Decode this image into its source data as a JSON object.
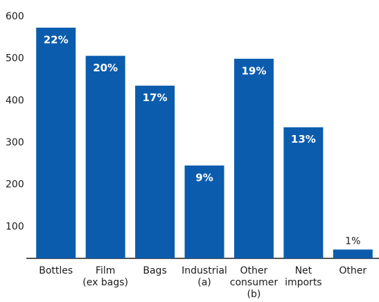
{
  "chart_data": {
    "type": "bar",
    "categories": [
      [
        "Bottles"
      ],
      [
        "Film",
        "(ex bags)"
      ],
      [
        "Bags"
      ],
      [
        "Industrial",
        "(a)"
      ],
      [
        "Other",
        "consumer",
        "(b)"
      ],
      [
        "Net",
        "imports"
      ],
      [
        "Other"
      ]
    ],
    "values": [
      549,
      482,
      411,
      221,
      475,
      312,
      21
    ],
    "value_labels": [
      "22%",
      "20%",
      "17%",
      "9%",
      "19%",
      "13%",
      "1%"
    ],
    "color": "#0b5cad",
    "ylim": [
      0,
      600
    ],
    "yticks": [
      100,
      200,
      300,
      400,
      500,
      600
    ],
    "grid": false
  }
}
